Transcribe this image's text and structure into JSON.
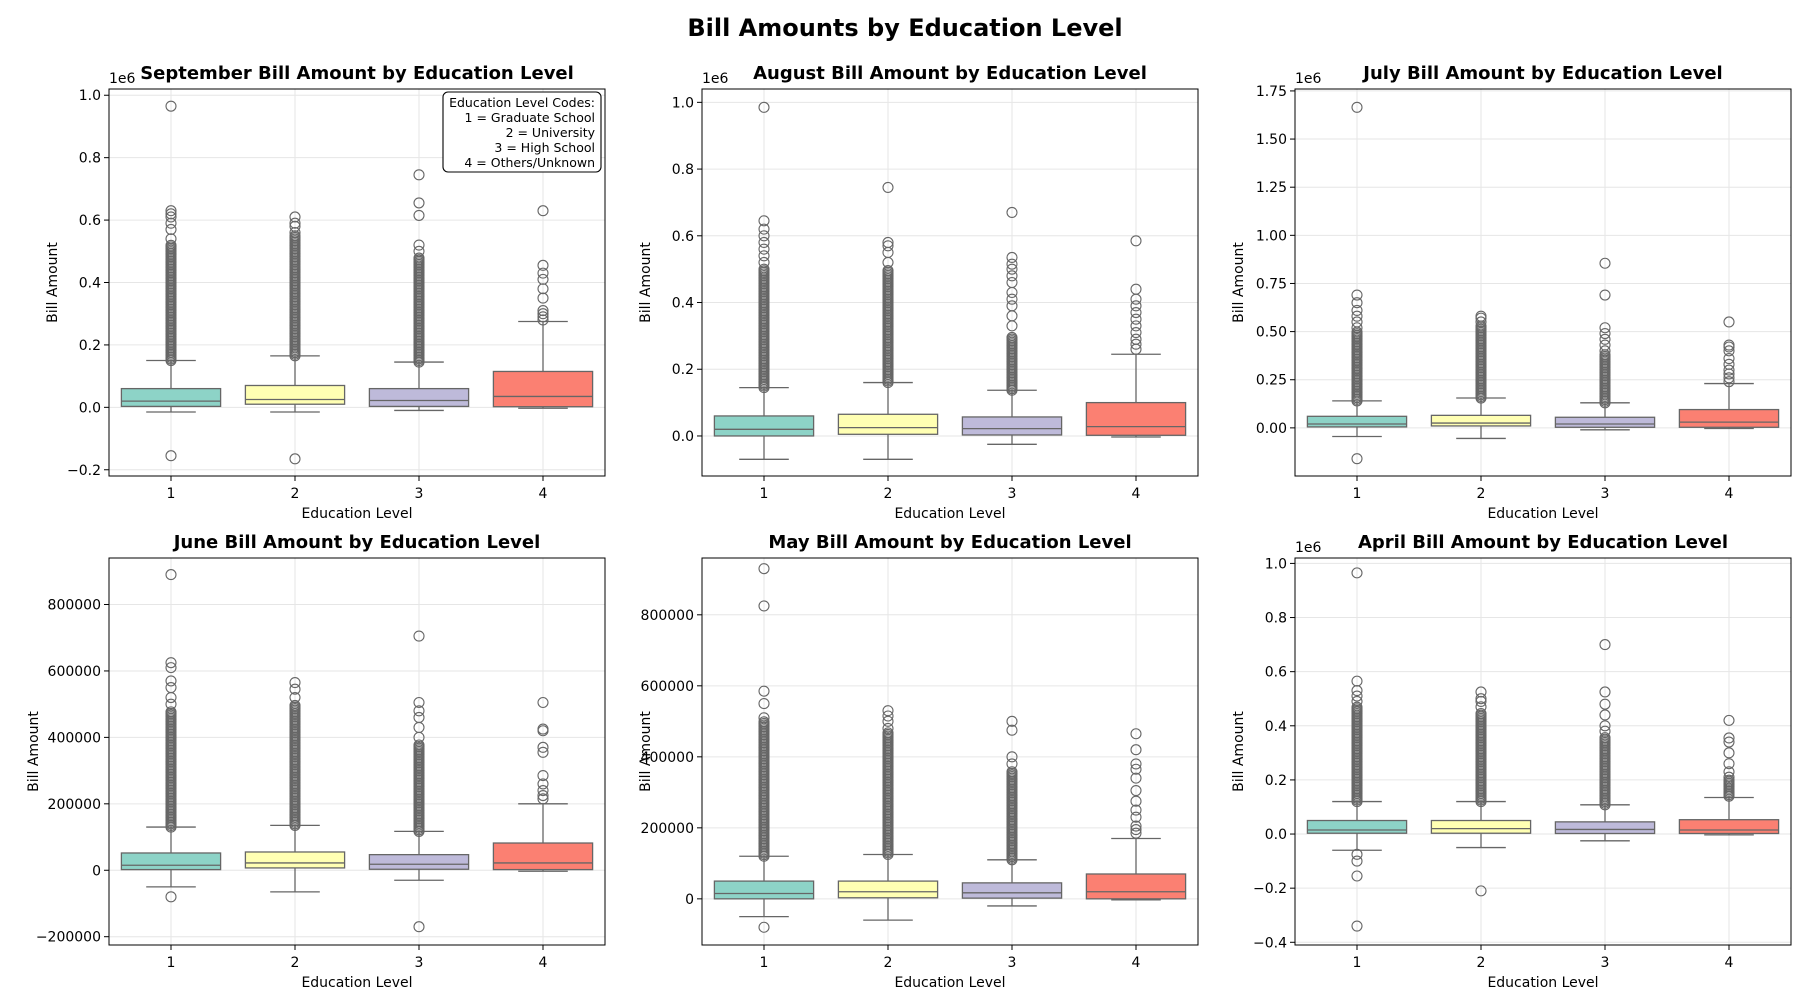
{
  "suptitle": "Bill Amounts by Education Level",
  "palette": [
    "#8dd3c7",
    "#ffffb3",
    "#bebada",
    "#fb8072"
  ],
  "box_edge_color": "#666666",
  "legend": {
    "placement": "top-right",
    "panel": 0,
    "lines": [
      "Education Level Codes:",
      "1 = Graduate School",
      "2 = University",
      "3 = High School",
      "4 = Others/Unknown"
    ]
  },
  "chart_data": [
    {
      "type": "box",
      "title": "September Bill Amount by Education Level",
      "xlabel": "Education Level",
      "ylabel": "Bill Amount",
      "categories": [
        "1",
        "2",
        "3",
        "4"
      ],
      "ylim": [
        -0.22,
        1.02
      ],
      "yticks": [
        -0.2,
        0.0,
        0.2,
        0.4,
        0.6,
        0.8,
        1.0
      ],
      "ytick_labels": [
        "−0.2",
        "0.0",
        "0.2",
        "0.4",
        "0.6",
        "0.8",
        "1.0"
      ],
      "offset_text": "1e6",
      "grid": true,
      "boxes": [
        {
          "q1": 0.003,
          "median": 0.02,
          "q3": 0.06,
          "whislo": -0.015,
          "whishi": 0.15,
          "out_range": [
            0.15,
            0.52
          ],
          "outliers": [
            0.54,
            0.57,
            0.59,
            0.61,
            0.62,
            0.63,
            0.965,
            -0.155
          ]
        },
        {
          "q1": 0.01,
          "median": 0.025,
          "q3": 0.07,
          "whislo": -0.015,
          "whishi": 0.165,
          "out_range": [
            0.165,
            0.55
          ],
          "outliers": [
            0.56,
            0.58,
            0.59,
            0.61,
            -0.165
          ]
        },
        {
          "q1": 0.003,
          "median": 0.022,
          "q3": 0.06,
          "whislo": -0.01,
          "whishi": 0.145,
          "out_range": [
            0.145,
            0.48
          ],
          "outliers": [
            0.5,
            0.52,
            0.615,
            0.655,
            0.745
          ]
        },
        {
          "q1": 0.002,
          "median": 0.035,
          "q3": 0.115,
          "whislo": -0.003,
          "whishi": 0.275,
          "out_range": null,
          "outliers": [
            0.28,
            0.29,
            0.3,
            0.31,
            0.35,
            0.38,
            0.41,
            0.43,
            0.455,
            0.63
          ]
        }
      ]
    },
    {
      "type": "box",
      "title": "August Bill Amount by Education Level",
      "xlabel": "Education Level",
      "ylabel": "Bill Amount",
      "categories": [
        "1",
        "2",
        "3",
        "4"
      ],
      "ylim": [
        -0.12,
        1.04
      ],
      "yticks": [
        0.0,
        0.2,
        0.4,
        0.6,
        0.8,
        1.0
      ],
      "ytick_labels": [
        "0.0",
        "0.2",
        "0.4",
        "0.6",
        "0.8",
        "1.0"
      ],
      "offset_text": "1e6",
      "grid": true,
      "boxes": [
        {
          "q1": 0.0,
          "median": 0.02,
          "q3": 0.06,
          "whislo": -0.07,
          "whishi": 0.145,
          "out_range": [
            0.145,
            0.5
          ],
          "outliers": [
            0.52,
            0.54,
            0.56,
            0.58,
            0.6,
            0.62,
            0.645,
            0.985
          ]
        },
        {
          "q1": 0.005,
          "median": 0.025,
          "q3": 0.065,
          "whislo": -0.07,
          "whishi": 0.16,
          "out_range": [
            0.16,
            0.5
          ],
          "outliers": [
            0.52,
            0.55,
            0.57,
            0.58,
            0.745
          ]
        },
        {
          "q1": 0.003,
          "median": 0.022,
          "q3": 0.057,
          "whislo": -0.025,
          "whishi": 0.137,
          "out_range": [
            0.137,
            0.3
          ],
          "outliers": [
            0.33,
            0.36,
            0.39,
            0.41,
            0.43,
            0.46,
            0.48,
            0.5,
            0.515,
            0.535,
            0.67
          ]
        },
        {
          "q1": 0.002,
          "median": 0.028,
          "q3": 0.1,
          "whislo": -0.003,
          "whishi": 0.245,
          "out_range": null,
          "outliers": [
            0.26,
            0.275,
            0.29,
            0.31,
            0.33,
            0.35,
            0.37,
            0.39,
            0.41,
            0.44,
            0.585
          ]
        }
      ]
    },
    {
      "type": "box",
      "title": "July Bill Amount by Education Level",
      "xlabel": "Education Level",
      "ylabel": "Bill Amount",
      "categories": [
        "1",
        "2",
        "3",
        "4"
      ],
      "ylim": [
        -0.25,
        1.76
      ],
      "yticks": [
        0.0,
        0.25,
        0.5,
        0.75,
        1.0,
        1.25,
        1.5,
        1.75
      ],
      "ytick_labels": [
        "0.00",
        "0.25",
        "0.50",
        "0.75",
        "1.00",
        "1.25",
        "1.50",
        "1.75"
      ],
      "offset_text": "1e6",
      "grid": true,
      "boxes": [
        {
          "q1": 0.005,
          "median": 0.02,
          "q3": 0.06,
          "whislo": -0.045,
          "whishi": 0.14,
          "out_range": [
            0.14,
            0.5
          ],
          "outliers": [
            0.52,
            0.55,
            0.58,
            0.61,
            0.65,
            0.69,
            1.665,
            -0.16
          ]
        },
        {
          "q1": 0.01,
          "median": 0.025,
          "q3": 0.065,
          "whislo": -0.055,
          "whishi": 0.155,
          "out_range": [
            0.155,
            0.53
          ],
          "outliers": [
            0.55,
            0.57,
            0.58
          ]
        },
        {
          "q1": 0.003,
          "median": 0.02,
          "q3": 0.055,
          "whislo": -0.01,
          "whishi": 0.13,
          "out_range": [
            0.13,
            0.38
          ],
          "outliers": [
            0.4,
            0.43,
            0.46,
            0.49,
            0.52,
            0.69,
            0.855
          ]
        },
        {
          "q1": 0.003,
          "median": 0.03,
          "q3": 0.095,
          "whislo": -0.003,
          "whishi": 0.23,
          "out_range": null,
          "outliers": [
            0.24,
            0.26,
            0.28,
            0.3,
            0.33,
            0.36,
            0.4,
            0.42,
            0.43,
            0.55
          ]
        }
      ]
    },
    {
      "type": "box",
      "title": "June Bill Amount by Education Level",
      "xlabel": "Education Level",
      "ylabel": "Bill Amount",
      "categories": [
        "1",
        "2",
        "3",
        "4"
      ],
      "ylim": [
        -225000,
        940000
      ],
      "yticks": [
        -200000,
        0,
        200000,
        400000,
        600000,
        800000
      ],
      "ytick_labels": [
        "−200000",
        "0",
        "200000",
        "400000",
        "600000",
        "800000"
      ],
      "offset_text": "",
      "grid": true,
      "boxes": [
        {
          "q1": 2000,
          "median": 15000,
          "q3": 52000,
          "whislo": -50000,
          "whishi": 130000,
          "out_range": [
            130000,
            480000
          ],
          "outliers": [
            500000,
            520000,
            550000,
            570000,
            610000,
            625000,
            890000,
            -80000
          ]
        },
        {
          "q1": 7000,
          "median": 22000,
          "q3": 55000,
          "whislo": -65000,
          "whishi": 135000,
          "out_range": [
            135000,
            500000
          ],
          "outliers": [
            520000,
            545000,
            565000
          ]
        },
        {
          "q1": 3000,
          "median": 18000,
          "q3": 47000,
          "whislo": -30000,
          "whishi": 117000,
          "out_range": [
            117000,
            380000
          ],
          "outliers": [
            400000,
            430000,
            460000,
            480000,
            505000,
            705000,
            -170000
          ]
        },
        {
          "q1": 2000,
          "median": 22000,
          "q3": 82000,
          "whislo": -3000,
          "whishi": 200000,
          "out_range": null,
          "outliers": [
            215000,
            225000,
            240000,
            260000,
            285000,
            355000,
            370000,
            420000,
            425000,
            505000
          ]
        }
      ]
    },
    {
      "type": "box",
      "title": "May Bill Amount by Education Level",
      "xlabel": "Education Level",
      "ylabel": "Bill Amount",
      "categories": [
        "1",
        "2",
        "3",
        "4"
      ],
      "ylim": [
        -130000,
        960000
      ],
      "yticks": [
        0,
        200000,
        400000,
        600000,
        800000
      ],
      "ytick_labels": [
        "0",
        "200000",
        "400000",
        "600000",
        "800000"
      ],
      "offset_text": "",
      "grid": true,
      "boxes": [
        {
          "q1": 0,
          "median": 15000,
          "q3": 50000,
          "whislo": -50000,
          "whishi": 120000,
          "out_range": [
            120000,
            500000
          ],
          "outliers": [
            510000,
            550000,
            585000,
            825000,
            930000,
            -80000
          ]
        },
        {
          "q1": 3000,
          "median": 20000,
          "q3": 50000,
          "whislo": -60000,
          "whishi": 125000,
          "out_range": [
            125000,
            470000
          ],
          "outliers": [
            480000,
            500000,
            515000,
            530000
          ]
        },
        {
          "q1": 2000,
          "median": 17000,
          "q3": 45000,
          "whislo": -20000,
          "whishi": 110000,
          "out_range": [
            110000,
            360000
          ],
          "outliers": [
            380000,
            400000,
            475000,
            500000
          ]
        },
        {
          "q1": 0,
          "median": 20000,
          "q3": 70000,
          "whislo": -3000,
          "whishi": 170000,
          "out_range": null,
          "outliers": [
            185000,
            195000,
            205000,
            230000,
            250000,
            275000,
            305000,
            340000,
            365000,
            380000,
            420000,
            465000
          ]
        }
      ]
    },
    {
      "type": "box",
      "title": "April Bill Amount by Education Level",
      "xlabel": "Education Level",
      "ylabel": "Bill Amount",
      "categories": [
        "1",
        "2",
        "3",
        "4"
      ],
      "ylim": [
        -0.41,
        1.02
      ],
      "yticks": [
        -0.4,
        -0.2,
        0.0,
        0.2,
        0.4,
        0.6,
        0.8,
        1.0
      ],
      "ytick_labels": [
        "−0.4",
        "−0.2",
        "0.0",
        "0.2",
        "0.4",
        "0.6",
        "0.8",
        "1.0"
      ],
      "offset_text": "1e6",
      "grid": true,
      "boxes": [
        {
          "q1": 0.003,
          "median": 0.015,
          "q3": 0.05,
          "whislo": -0.06,
          "whishi": 0.12,
          "out_range": [
            0.12,
            0.47
          ],
          "outliers": [
            0.49,
            0.51,
            0.53,
            0.565,
            0.965,
            -0.075,
            -0.1,
            -0.155,
            -0.34
          ]
        },
        {
          "q1": 0.003,
          "median": 0.02,
          "q3": 0.05,
          "whislo": -0.05,
          "whishi": 0.12,
          "out_range": [
            0.12,
            0.45
          ],
          "outliers": [
            0.47,
            0.49,
            0.5,
            0.525,
            -0.21
          ]
        },
        {
          "q1": 0.002,
          "median": 0.017,
          "q3": 0.045,
          "whislo": -0.025,
          "whishi": 0.108,
          "out_range": [
            0.108,
            0.36
          ],
          "outliers": [
            0.38,
            0.4,
            0.44,
            0.48,
            0.525,
            0.7
          ]
        },
        {
          "q1": 0.002,
          "median": 0.015,
          "q3": 0.053,
          "whislo": -0.003,
          "whishi": 0.135,
          "out_range": [
            0.14,
            0.2
          ],
          "outliers": [
            0.21,
            0.23,
            0.26,
            0.3,
            0.34,
            0.355,
            0.42
          ]
        }
      ]
    }
  ]
}
